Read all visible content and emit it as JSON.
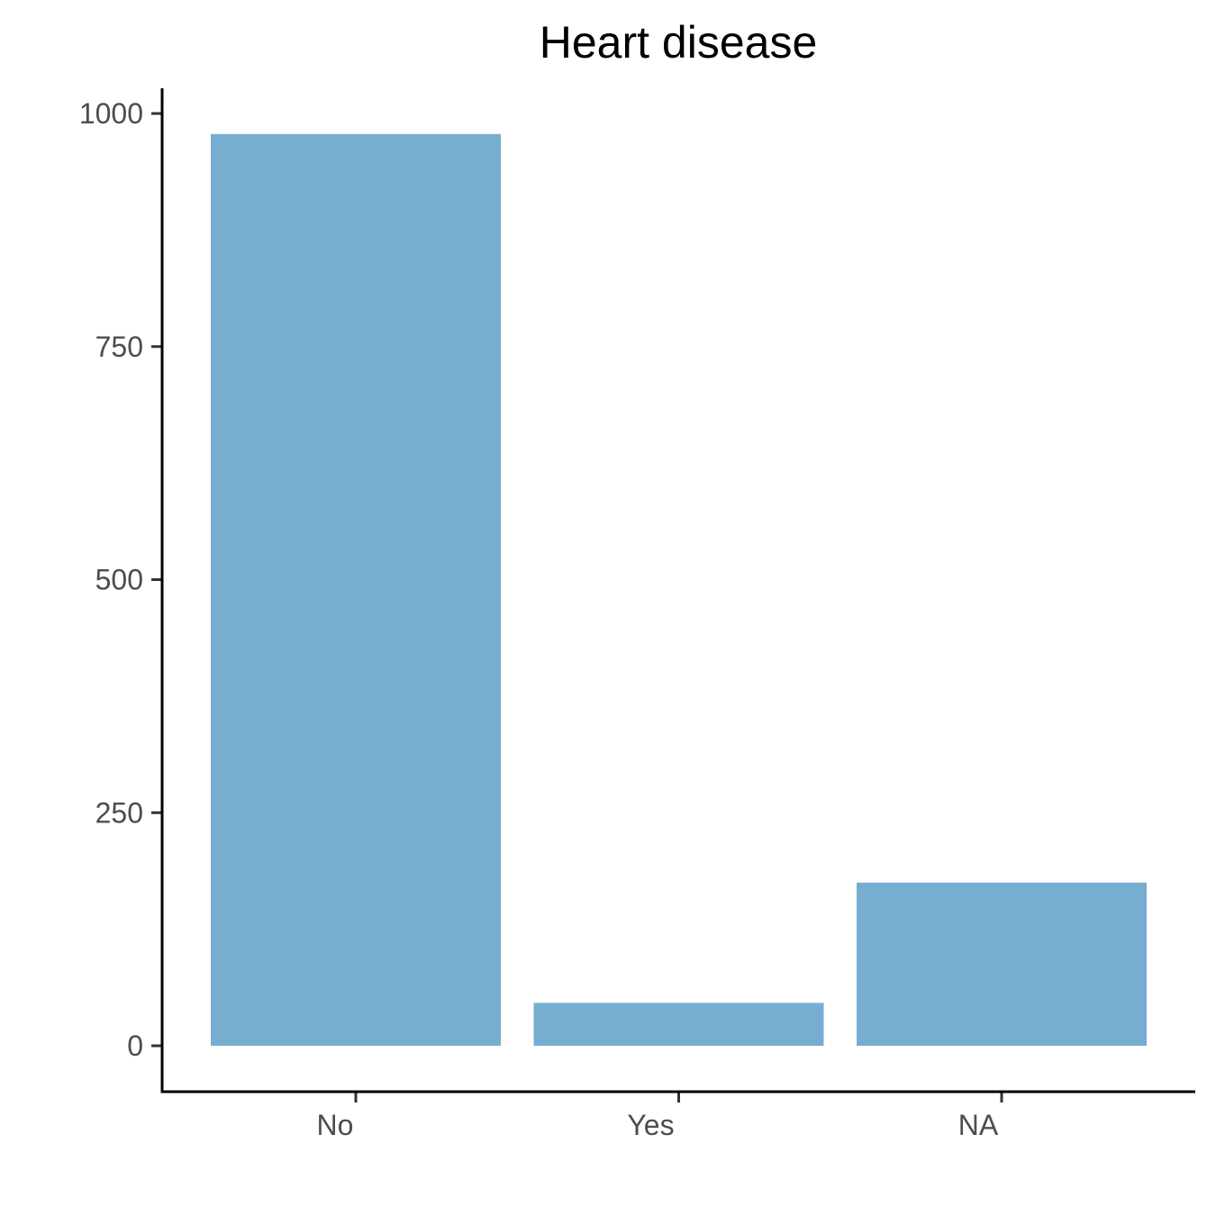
{
  "chart_data": {
    "type": "bar",
    "title": "Heart disease",
    "xlabel": "",
    "ylabel": "",
    "categories": [
      "No",
      "Yes",
      "NA"
    ],
    "values": [
      978,
      46,
      175
    ],
    "ylim": [
      0,
      1000
    ],
    "yticks": [
      0,
      250,
      500,
      750,
      1000
    ],
    "ytick_labels": [
      "0",
      "250",
      "500",
      "750",
      "1000"
    ],
    "bar_color": "#78add2",
    "grid": false,
    "legend": "none"
  }
}
